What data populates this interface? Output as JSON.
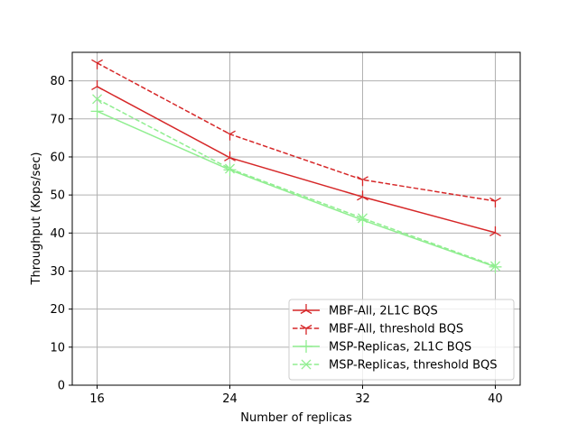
{
  "chart_data": {
    "type": "line",
    "title": "",
    "xlabel": "Number of replicas",
    "ylabel": "Throughput (Kops/sec)",
    "x": [
      16,
      24,
      32,
      40
    ],
    "xticks": [
      "16",
      "24",
      "32",
      "40"
    ],
    "xlim": [
      14.5,
      41.5
    ],
    "ylim": [
      0,
      87.5
    ],
    "yticks": [
      0,
      10,
      20,
      30,
      40,
      50,
      60,
      70,
      80
    ],
    "grid": true,
    "legend_position": "lower-right",
    "series": [
      {
        "name": "MBF-All, 2L1C BQS",
        "values": [
          78.5,
          59.8,
          49.5,
          40.1
        ],
        "color": "#d62728",
        "dash": "solid",
        "marker": "tri-up"
      },
      {
        "name": "MBF-All, threshold BQS",
        "values": [
          84.7,
          66.0,
          54.0,
          48.4
        ],
        "color": "#d62728",
        "dash": "dashed",
        "marker": "tri-down"
      },
      {
        "name": "MSP-Replicas, 2L1C BQS",
        "values": [
          72.0,
          56.6,
          43.4,
          31.1
        ],
        "color": "#90ee90",
        "dash": "solid",
        "marker": "plus"
      },
      {
        "name": "MSP-Replicas, threshold BQS",
        "values": [
          75.2,
          56.9,
          43.9,
          31.3
        ],
        "color": "#90ee90",
        "dash": "dashed",
        "marker": "x"
      }
    ]
  }
}
